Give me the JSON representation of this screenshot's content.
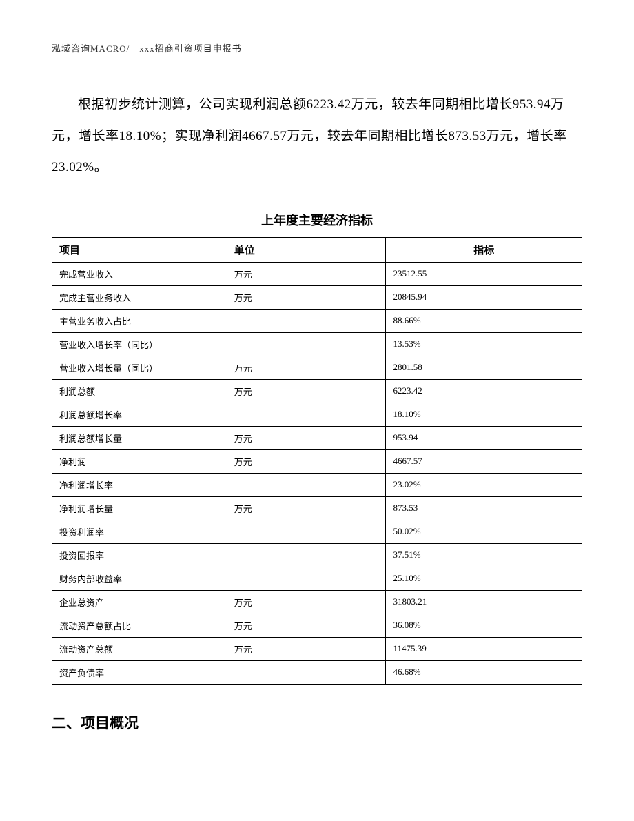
{
  "header": {
    "text": "泓域咨询MACRO/　xxx招商引资项目申报书"
  },
  "paragraph": {
    "text": "根据初步统计测算，公司实现利润总额6223.42万元，较去年同期相比增长953.94万元，增长率18.10%；实现净利润4667.57万元，较去年同期相比增长873.53万元，增长率23.02%。"
  },
  "table": {
    "title": "上年度主要经济指标",
    "headers": {
      "col1": "项目",
      "col2": "单位",
      "col3": "指标"
    },
    "rows": [
      {
        "item": "完成营业收入",
        "unit": "万元",
        "value": "23512.55"
      },
      {
        "item": "完成主营业务收入",
        "unit": "万元",
        "value": "20845.94"
      },
      {
        "item": "主营业务收入占比",
        "unit": "",
        "value": "88.66%"
      },
      {
        "item": "营业收入增长率（同比）",
        "unit": "",
        "value": "13.53%"
      },
      {
        "item": "营业收入增长量（同比）",
        "unit": "万元",
        "value": "2801.58"
      },
      {
        "item": "利润总额",
        "unit": "万元",
        "value": "6223.42"
      },
      {
        "item": "利润总额增长率",
        "unit": "",
        "value": "18.10%"
      },
      {
        "item": "利润总额增长量",
        "unit": "万元",
        "value": "953.94"
      },
      {
        "item": "净利润",
        "unit": "万元",
        "value": "4667.57"
      },
      {
        "item": "净利润增长率",
        "unit": "",
        "value": "23.02%"
      },
      {
        "item": "净利润增长量",
        "unit": "万元",
        "value": "873.53"
      },
      {
        "item": "投资利润率",
        "unit": "",
        "value": "50.02%"
      },
      {
        "item": "投资回报率",
        "unit": "",
        "value": "37.51%"
      },
      {
        "item": "财务内部收益率",
        "unit": "",
        "value": "25.10%"
      },
      {
        "item": "企业总资产",
        "unit": "万元",
        "value": "31803.21"
      },
      {
        "item": "流动资产总额占比",
        "unit": "万元",
        "value": "36.08%"
      },
      {
        "item": "流动资产总额",
        "unit": "万元",
        "value": "11475.39"
      },
      {
        "item": "资产负债率",
        "unit": "",
        "value": "46.68%"
      }
    ]
  },
  "section": {
    "heading": "二、项目概况"
  }
}
